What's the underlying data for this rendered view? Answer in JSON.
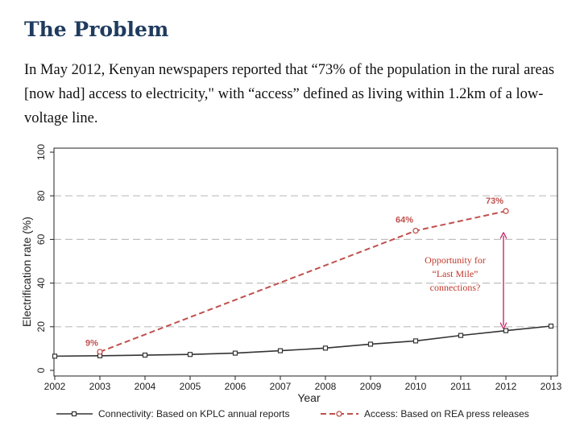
{
  "slide": {
    "title": "The Problem",
    "body": "In May 2012, Kenyan newspapers reported that “73% of the population in the rural areas [now had] access to electricity,\" with “access” defined as living within 1.2km of a low-voltage line."
  },
  "colors": {
    "title": "#1f3b5e",
    "connectivity": "#333333",
    "access": "#c0504d",
    "grid": "#bfbfbf",
    "annotation": "#c0392b",
    "arrow": "#c2185b"
  },
  "chart_data": {
    "type": "line",
    "title": "",
    "xlabel": "Year",
    "ylabel": "Electrification rate (%)",
    "xlim": [
      2002,
      2013
    ],
    "ylim": [
      0,
      100
    ],
    "xticks": [
      2002,
      2003,
      2004,
      2005,
      2006,
      2007,
      2008,
      2009,
      2010,
      2011,
      2012,
      2013
    ],
    "yticks": [
      0,
      20,
      40,
      60,
      80,
      100
    ],
    "grid_y": [
      20,
      40,
      60,
      80
    ],
    "series": [
      {
        "name": "Connectivity: Based on KPLC annual reports",
        "style": "solid",
        "marker": "square",
        "x": [
          2002,
          2003,
          2004,
          2005,
          2006,
          2007,
          2008,
          2009,
          2010,
          2011,
          2012,
          2013
        ],
        "y": [
          6.5,
          6.7,
          7.0,
          7.3,
          7.9,
          9.0,
          10.2,
          12.0,
          13.5,
          16.0,
          18.2,
          20.3
        ]
      },
      {
        "name": "Access: Based on REA press releases",
        "style": "dashed",
        "marker": "circle",
        "x": [
          2003,
          2010,
          2012
        ],
        "y": [
          8.5,
          64,
          73
        ]
      }
    ],
    "data_labels": [
      {
        "text": "9%",
        "x": 2003,
        "y": 9
      },
      {
        "text": "64%",
        "x": 2010,
        "y": 64
      },
      {
        "text": "73%",
        "x": 2012,
        "y": 73
      }
    ],
    "annotation": {
      "lines": [
        "Opportunity for",
        "“Last Mile”",
        "connections?"
      ],
      "arrow_x": 2012,
      "arrow_from": 19,
      "arrow_to": 64
    },
    "legend": [
      {
        "label": "Connectivity: Based on KPLC annual reports",
        "series": 0
      },
      {
        "label": "Access: Based on REA press releases",
        "series": 1
      }
    ],
    "legend_position": "bottom"
  }
}
